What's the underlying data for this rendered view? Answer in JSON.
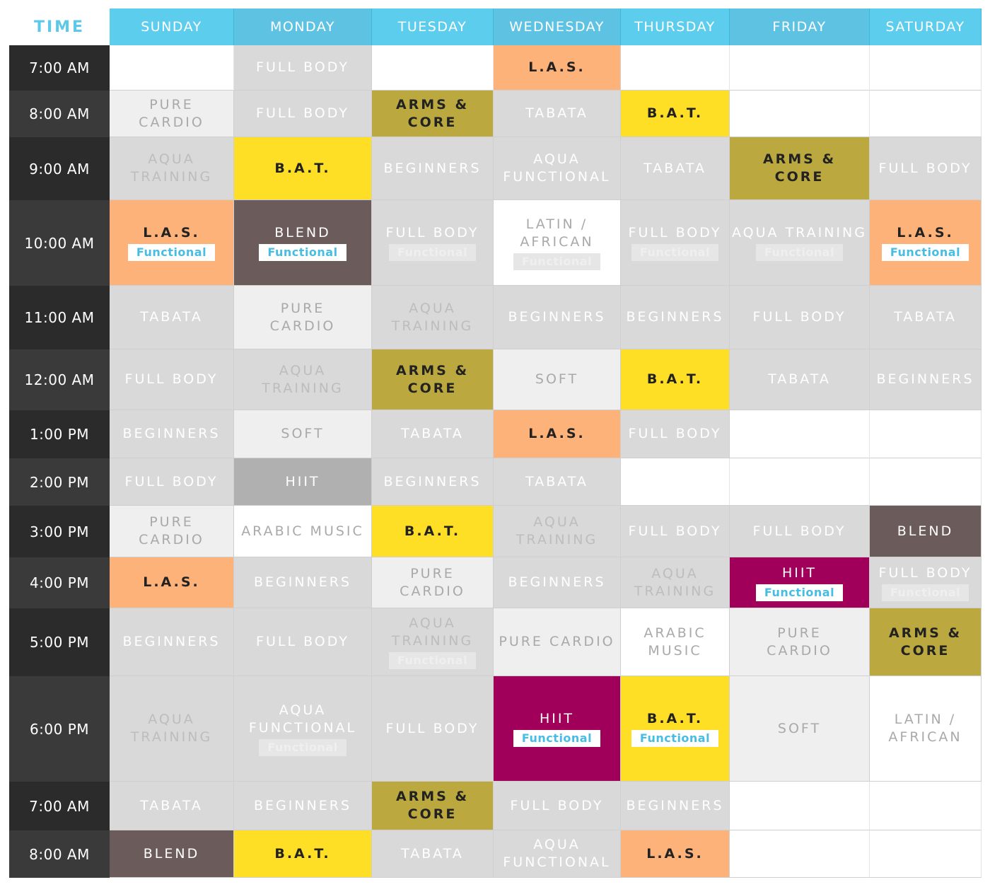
{
  "header": {
    "time_title": "TIME",
    "days": [
      "SUNDAY",
      "MONDAY",
      "TUESDAY",
      "WEDNESDAY",
      "THURSDAY",
      "FRIDAY",
      "SATURDAY"
    ]
  },
  "colors": {
    "header_cyan": "#5dcdee",
    "time_dark": "#2e2e2e",
    "grey": "#d9d9d9",
    "light_grey": "#efefef",
    "mid_grey": "#b0b0b0",
    "orange": "#fdb279",
    "olive": "#bba83e",
    "yellow": "#ffdf26",
    "brown": "#6b5b5a",
    "magenta": "#a1005a",
    "tag_text": "#48bde4"
  },
  "rows": [
    {
      "time": "7:00 AM",
      "cells": [
        {
          "label": "",
          "style": "white"
        },
        {
          "label": "FULL BODY",
          "style": "grey"
        },
        {
          "label": "",
          "style": "white"
        },
        {
          "label": "L.A.S.",
          "style": "orange"
        },
        {
          "label": "",
          "style": "white"
        },
        {
          "label": "",
          "style": "white"
        },
        {
          "label": "",
          "style": "white"
        }
      ]
    },
    {
      "time": "8:00 AM",
      "cells": [
        {
          "label": "PURE\nCARDIO",
          "style": "light"
        },
        {
          "label": "FULL BODY",
          "style": "grey"
        },
        {
          "label": "ARMS &\nCORE",
          "style": "olive"
        },
        {
          "label": "TABATA",
          "style": "grey"
        },
        {
          "label": "B.A.T.",
          "style": "yellow"
        },
        {
          "label": "",
          "style": "white"
        },
        {
          "label": "",
          "style": "white"
        }
      ]
    },
    {
      "time": "9:00 AM",
      "cells": [
        {
          "label": "AQUA\nTRAINING",
          "style": "grey-dim"
        },
        {
          "label": "B.A.T.",
          "style": "yellow"
        },
        {
          "label": "BEGINNERS",
          "style": "grey"
        },
        {
          "label": "AQUA\nFUNCTIONAL",
          "style": "grey"
        },
        {
          "label": "TABATA",
          "style": "grey"
        },
        {
          "label": "ARMS &\nCORE",
          "style": "olive"
        },
        {
          "label": "FULL BODY",
          "style": "grey"
        }
      ]
    },
    {
      "time": "10:00 AM",
      "cells": [
        {
          "label": "L.A.S.",
          "style": "orange",
          "tag": "Functional"
        },
        {
          "label": "BLEND",
          "style": "brown",
          "tag": "Functional"
        },
        {
          "label": "FULL BODY",
          "style": "grey",
          "ghost": "Functional"
        },
        {
          "label": "LATIN /\nAFRICAN",
          "style": "white-dim",
          "ghost": "Functional"
        },
        {
          "label": "FULL BODY",
          "style": "grey",
          "ghost": "Functional"
        },
        {
          "label": "AQUA TRAINING",
          "style": "grey",
          "ghost": "Functional"
        },
        {
          "label": "L.A.S.",
          "style": "orange",
          "tag": "Functional"
        }
      ]
    },
    {
      "time": "11:00 AM",
      "cells": [
        {
          "label": "TABATA",
          "style": "grey"
        },
        {
          "label": "PURE\nCARDIO",
          "style": "light"
        },
        {
          "label": "AQUA\nTRAINING",
          "style": "grey-dim"
        },
        {
          "label": "BEGINNERS",
          "style": "grey"
        },
        {
          "label": "BEGINNERS",
          "style": "grey"
        },
        {
          "label": "FULL BODY",
          "style": "grey"
        },
        {
          "label": "TABATA",
          "style": "grey"
        }
      ]
    },
    {
      "time": "12:00 AM",
      "cells": [
        {
          "label": "FULL BODY",
          "style": "grey"
        },
        {
          "label": "AQUA\nTRAINING",
          "style": "grey-dim"
        },
        {
          "label": "ARMS &\nCORE",
          "style": "olive"
        },
        {
          "label": "SOFT",
          "style": "light"
        },
        {
          "label": "B.A.T.",
          "style": "yellow"
        },
        {
          "label": "TABATA",
          "style": "grey"
        },
        {
          "label": "BEGINNERS",
          "style": "grey"
        }
      ]
    },
    {
      "time": "1:00 PM",
      "cells": [
        {
          "label": "BEGINNERS",
          "style": "grey"
        },
        {
          "label": "SOFT",
          "style": "light"
        },
        {
          "label": "TABATA",
          "style": "grey"
        },
        {
          "label": "L.A.S.",
          "style": "orange"
        },
        {
          "label": "FULL BODY",
          "style": "grey"
        },
        {
          "label": "",
          "style": "white"
        },
        {
          "label": "",
          "style": "white"
        }
      ]
    },
    {
      "time": "2:00 PM",
      "cells": [
        {
          "label": "FULL BODY",
          "style": "grey"
        },
        {
          "label": "HIIT",
          "style": "midgrey"
        },
        {
          "label": "BEGINNERS",
          "style": "grey"
        },
        {
          "label": "TABATA",
          "style": "grey"
        },
        {
          "label": "",
          "style": "white"
        },
        {
          "label": "",
          "style": "white"
        },
        {
          "label": "",
          "style": "white"
        }
      ]
    },
    {
      "time": "3:00 PM",
      "cells": [
        {
          "label": "PURE\nCARDIO",
          "style": "light"
        },
        {
          "label": "ARABIC MUSIC",
          "style": "white-dim"
        },
        {
          "label": "B.A.T.",
          "style": "yellow"
        },
        {
          "label": "AQUA\nTRAINING",
          "style": "grey-dim"
        },
        {
          "label": "FULL BODY",
          "style": "grey"
        },
        {
          "label": "FULL BODY",
          "style": "grey"
        },
        {
          "label": "BLEND",
          "style": "brown"
        }
      ]
    },
    {
      "time": "4:00 PM",
      "cells": [
        {
          "label": "L.A.S.",
          "style": "orange"
        },
        {
          "label": "BEGINNERS",
          "style": "grey"
        },
        {
          "label": "PURE\nCARDIO",
          "style": "light"
        },
        {
          "label": "BEGINNERS",
          "style": "grey"
        },
        {
          "label": "AQUA\nTRAINING",
          "style": "grey-dim"
        },
        {
          "label": "HIIT",
          "style": "magenta",
          "tag": "Functional"
        },
        {
          "label": "FULL BODY",
          "style": "grey",
          "ghost": "Functional"
        }
      ]
    },
    {
      "time": "5:00 PM",
      "cells": [
        {
          "label": "BEGINNERS",
          "style": "grey"
        },
        {
          "label": "FULL BODY",
          "style": "grey"
        },
        {
          "label": "AQUA\nTRAINING",
          "style": "grey-dim",
          "ghost": "Functional"
        },
        {
          "label": "PURE CARDIO",
          "style": "light"
        },
        {
          "label": "ARABIC\nMUSIC",
          "style": "white-dim"
        },
        {
          "label": "PURE\nCARDIO",
          "style": "light"
        },
        {
          "label": "ARMS &\nCORE",
          "style": "olive"
        }
      ]
    },
    {
      "time": "6:00 PM",
      "cells": [
        {
          "label": "AQUA\nTRAINING",
          "style": "grey-dim"
        },
        {
          "label": "AQUA\nFUNCTIONAL",
          "style": "grey",
          "ghost": "Functional"
        },
        {
          "label": "FULL BODY",
          "style": "grey"
        },
        {
          "label": "HIIT",
          "style": "magenta",
          "tag": "Functional"
        },
        {
          "label": "B.A.T.",
          "style": "yellow",
          "tag": "Functional"
        },
        {
          "label": "SOFT",
          "style": "light"
        },
        {
          "label": "LATIN /\nAFRICAN",
          "style": "white-dim"
        }
      ]
    },
    {
      "time": "7:00 AM",
      "cells": [
        {
          "label": "TABATA",
          "style": "grey"
        },
        {
          "label": "BEGINNERS",
          "style": "grey"
        },
        {
          "label": "ARMS &\nCORE",
          "style": "olive"
        },
        {
          "label": "FULL BODY",
          "style": "grey"
        },
        {
          "label": "BEGINNERS",
          "style": "grey"
        },
        {
          "label": "",
          "style": "white"
        },
        {
          "label": "",
          "style": "white"
        }
      ]
    },
    {
      "time": "8:00 AM",
      "cells": [
        {
          "label": "BLEND",
          "style": "brown"
        },
        {
          "label": "B.A.T.",
          "style": "yellow"
        },
        {
          "label": "TABATA",
          "style": "grey"
        },
        {
          "label": "AQUA\nFUNCTIONAL",
          "style": "grey"
        },
        {
          "label": "L.A.S.",
          "style": "orange"
        },
        {
          "label": "",
          "style": "white"
        },
        {
          "label": "",
          "style": "white"
        }
      ]
    }
  ]
}
